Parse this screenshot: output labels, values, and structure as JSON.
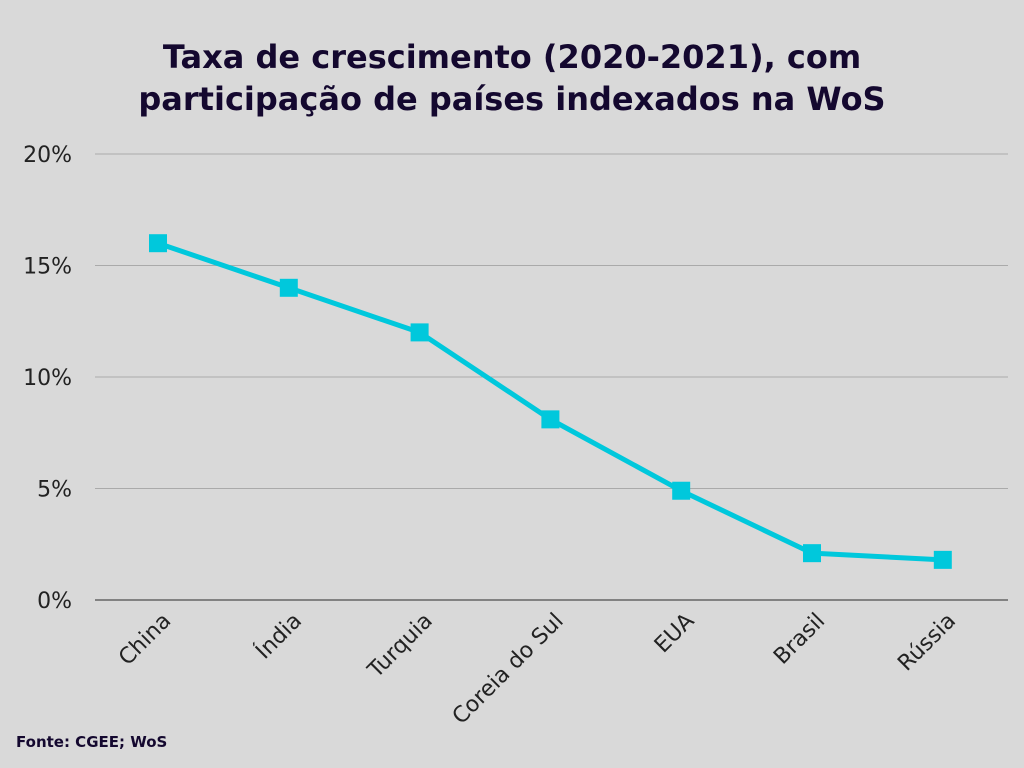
{
  "chart_data": {
    "type": "line",
    "title_lines": [
      "Taxa de crescimento (2020-2021), com",
      "participação de países indexados na WoS"
    ],
    "categories": [
      "China",
      "Índia",
      "Turquia",
      "Coreia do Sul",
      "EUA",
      "Brasil",
      "Rússia"
    ],
    "series": [
      {
        "name": "Taxa de crescimento",
        "values": [
          16.0,
          14.0,
          12.0,
          8.1,
          4.9,
          2.1,
          1.8
        ],
        "color": "#00c8dc"
      }
    ],
    "xlabel": "",
    "ylabel": "",
    "ylim": [
      0,
      20
    ],
    "yticks": [
      0,
      5,
      10,
      15,
      20
    ],
    "ytick_labels": [
      "0%",
      "5%",
      "10%",
      "15%",
      "20%"
    ],
    "grid": true,
    "legend": "none",
    "marker": "square"
  },
  "source": "Fonte: CGEE; WoS"
}
